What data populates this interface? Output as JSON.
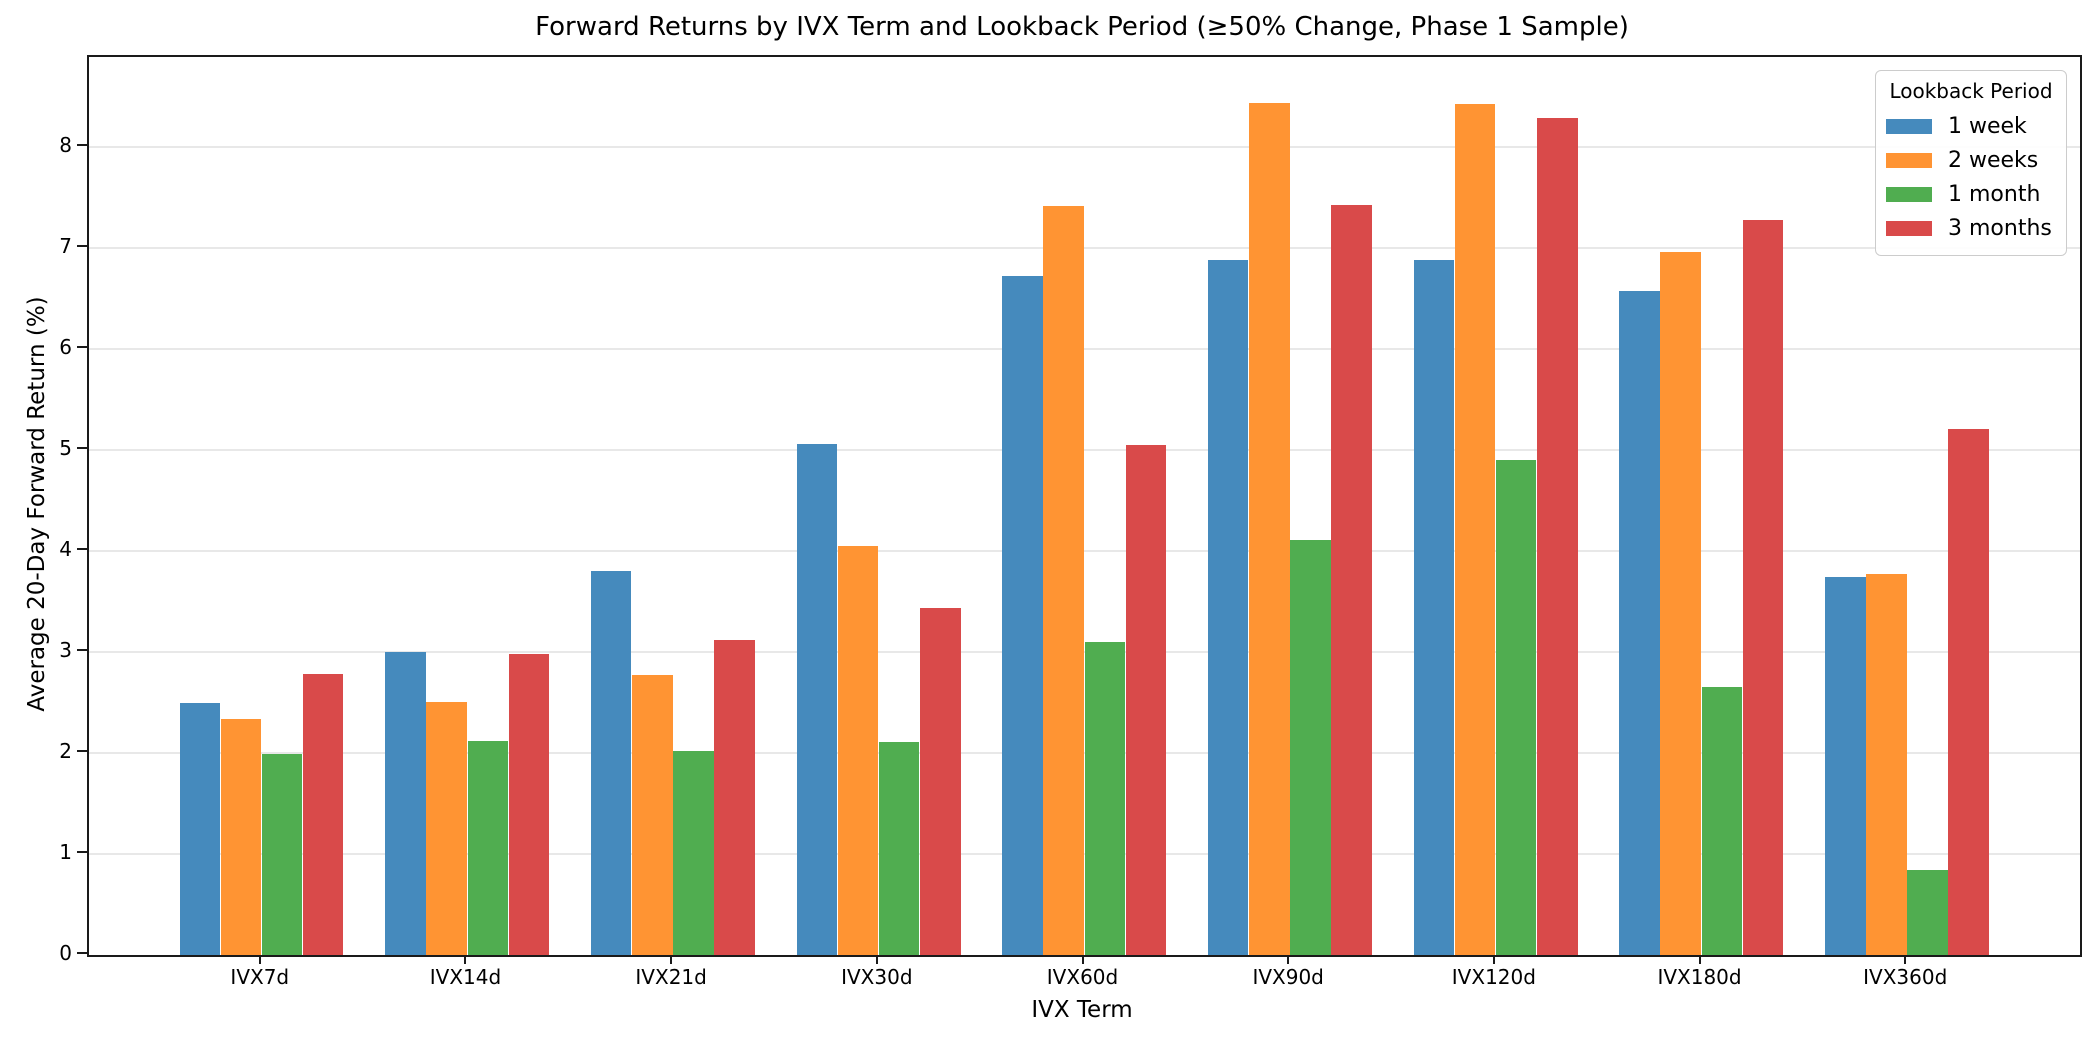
{
  "figure": {
    "title": "Forward Returns by IVX Term and Lookback Period (≥50% Change, Phase 1 Sample)",
    "xlabel": "IVX Term",
    "ylabel": "Average 20-Day Forward Return (%)"
  },
  "legend": {
    "title": "Lookback Period",
    "entries": [
      {
        "label": "1 week",
        "color": "#458abd"
      },
      {
        "label": "2 weeks",
        "color": "#ff9433"
      },
      {
        "label": "1 month",
        "color": "#50ad50"
      },
      {
        "label": "3 months",
        "color": "#d94a4a"
      }
    ]
  },
  "chart_data": {
    "type": "bar",
    "title": "Forward Returns by IVX Term and Lookback Period (≥50% Change, Phase 1 Sample)",
    "xlabel": "IVX Term",
    "ylabel": "Average 20-Day Forward Return (%)",
    "categories": [
      "IVX7d",
      "IVX14d",
      "IVX21d",
      "IVX30d",
      "IVX60d",
      "IVX90d",
      "IVX120d",
      "IVX180d",
      "IVX360d"
    ],
    "series": [
      {
        "name": "1 week",
        "color": "#458abd",
        "values": [
          2.5,
          3.0,
          3.8,
          5.06,
          6.72,
          6.88,
          6.88,
          6.57,
          3.74
        ]
      },
      {
        "name": "2 weeks",
        "color": "#ff9433",
        "values": [
          2.34,
          2.51,
          2.77,
          4.05,
          7.42,
          8.44,
          8.43,
          6.96,
          3.77
        ]
      },
      {
        "name": "1 month",
        "color": "#50ad50",
        "values": [
          1.99,
          2.12,
          2.02,
          2.11,
          3.1,
          4.11,
          4.9,
          2.65,
          0.84
        ]
      },
      {
        "name": "3 months",
        "color": "#d94a4a",
        "values": [
          2.78,
          2.98,
          3.12,
          3.44,
          5.05,
          7.43,
          8.29,
          7.28,
          5.21
        ]
      }
    ],
    "yticks": [
      0,
      1,
      2,
      3,
      4,
      5,
      6,
      7,
      8
    ],
    "ylim": [
      0,
      8.89
    ],
    "bar_group_width": 0.8,
    "grid": "horizontal",
    "legend_position": "upper right",
    "legend_title": "Lookback Period"
  }
}
